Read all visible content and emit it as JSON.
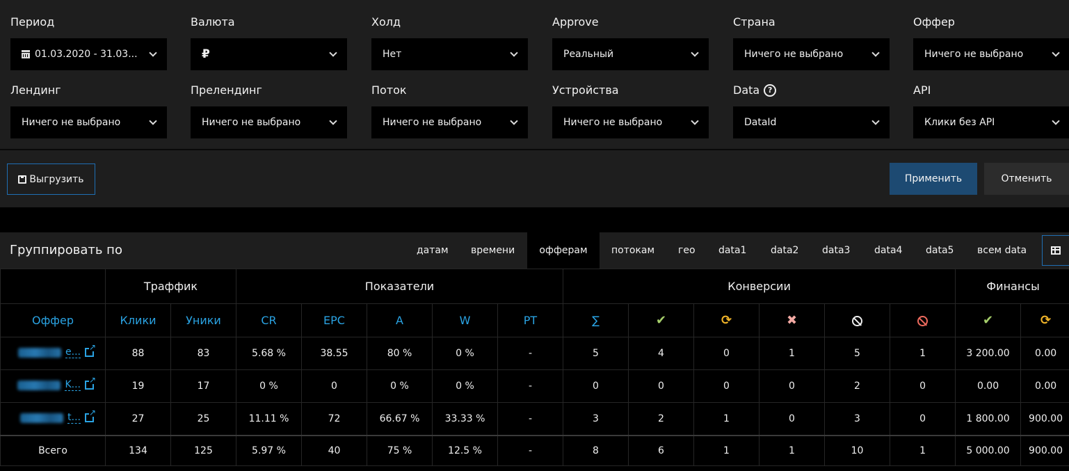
{
  "filters": {
    "row1": [
      {
        "label": "Период",
        "value": "01.03.2020 - 31.03...",
        "icon": "calendar-icon"
      },
      {
        "label": "Валюта",
        "value": "₽"
      },
      {
        "label": "Холд",
        "value": "Нет"
      },
      {
        "label": "Approve",
        "value": "Реальный"
      },
      {
        "label": "Страна",
        "value": "Ничего не выбрано"
      },
      {
        "label": "Оффер",
        "value": "Ничего не выбрано"
      }
    ],
    "row2": [
      {
        "label": "Лендинг",
        "value": "Ничего не выбрано"
      },
      {
        "label": "Прелендинг",
        "value": "Ничего не выбрано"
      },
      {
        "label": "Поток",
        "value": "Ничего не выбрано"
      },
      {
        "label": "Устройства",
        "value": "Ничего не выбрано"
      },
      {
        "label": "Data",
        "value": "DataId",
        "icon": "help-icon"
      },
      {
        "label": "API",
        "value": "Клики без API"
      }
    ]
  },
  "actions": {
    "export_label": "Выгрузить",
    "apply_label": "Применить",
    "cancel_label": "Отменить"
  },
  "groupby": {
    "title": "Группировать по",
    "active": "офферам",
    "tabs": [
      "датам",
      "времени",
      "офферам",
      "потокам",
      "гео",
      "data1",
      "data2",
      "data3",
      "data4",
      "data5",
      "всем data"
    ]
  },
  "table": {
    "groups": [
      "Траффик",
      "Показатели",
      "Конверсии",
      "Финансы"
    ],
    "columns": {
      "offer": "Оффер",
      "clicks": "Клики",
      "uniques": "Уники",
      "cr": "CR",
      "epc": "EPC",
      "a": "A",
      "w": "W",
      "pt": "PT",
      "sum": "∑"
    },
    "column_icons": [
      "check-icon",
      "hold-icon",
      "reject-icon",
      "ban-icon",
      "ban-red-icon",
      "check-icon",
      "hold-icon"
    ],
    "rows": [
      {
        "offer_tail": "e...",
        "cells": [
          "88",
          "83",
          "5.68 %",
          "38.55",
          "80 %",
          "0 %",
          "-",
          "5",
          "4",
          "0",
          "1",
          "5",
          "1",
          "3 200.00",
          "0.00"
        ]
      },
      {
        "offer_tail": "K...",
        "cells": [
          "19",
          "17",
          "0 %",
          "0",
          "0 %",
          "0 %",
          "-",
          "0",
          "0",
          "0",
          "0",
          "2",
          "0",
          "0.00",
          "0.00"
        ]
      },
      {
        "offer_tail": "t...",
        "cells": [
          "27",
          "25",
          "11.11 %",
          "72",
          "66.67 %",
          "33.33 %",
          "-",
          "3",
          "2",
          "1",
          "0",
          "3",
          "0",
          "1 800.00",
          "900.00"
        ]
      }
    ],
    "total": {
      "label": "Всего",
      "cells": [
        "134",
        "125",
        "5.97 %",
        "40",
        "75 %",
        "12.5 %",
        "-",
        "8",
        "6",
        "1",
        "1",
        "10",
        "1",
        "5 000.00",
        "900.00"
      ]
    }
  }
}
